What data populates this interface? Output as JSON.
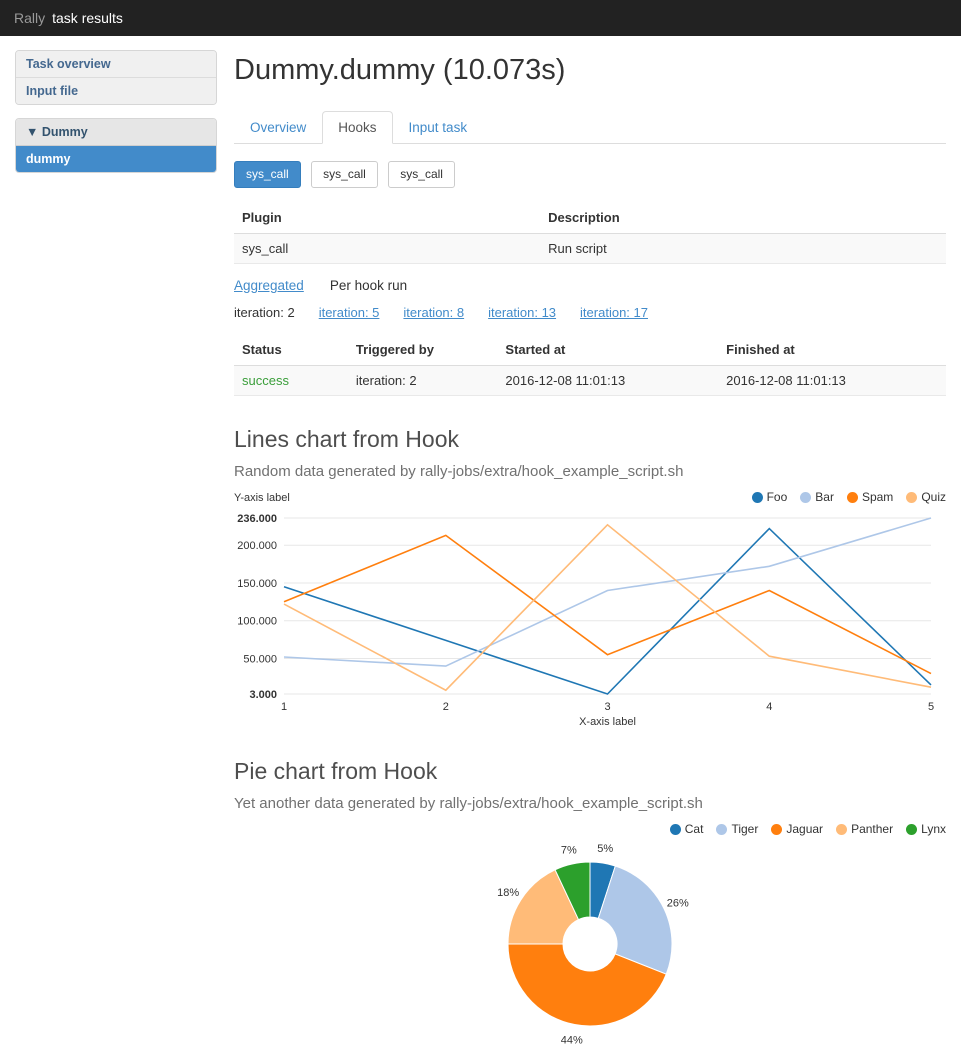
{
  "theme": {
    "accent": "#428bca",
    "navbar_bg": "#222222",
    "success_color": "#3a9e3a"
  },
  "navbar": {
    "brand": "Rally",
    "title": "task results"
  },
  "sidebar": {
    "top_items": [
      {
        "label": "Task overview"
      },
      {
        "label": "Input file"
      }
    ],
    "scenario_group": {
      "collapse_icon": "▼",
      "header": "Dummy",
      "items": [
        {
          "label": "dummy",
          "active": true
        }
      ]
    }
  },
  "main": {
    "title": "Dummy.dummy (10.073s)",
    "tabs": [
      {
        "label": "Overview",
        "active": false
      },
      {
        "label": "Hooks",
        "active": true
      },
      {
        "label": "Input task",
        "active": false
      }
    ],
    "hook_buttons": [
      {
        "label": "sys_call",
        "active": true
      },
      {
        "label": "sys_call",
        "active": false
      },
      {
        "label": "sys_call",
        "active": false
      }
    ],
    "plugin_table": {
      "headers": [
        "Plugin",
        "Description"
      ],
      "rows": [
        [
          "sys_call",
          "Run script"
        ]
      ]
    },
    "view_modes": {
      "aggregated_label": "Aggregated",
      "per_hook_label": "Per hook run"
    },
    "iterations": {
      "selected": "iteration: 2",
      "links": [
        "iteration: 5",
        "iteration: 8",
        "iteration: 13",
        "iteration: 17"
      ]
    },
    "runs_table": {
      "headers": [
        "Status",
        "Triggered by",
        "Started at",
        "Finished at"
      ],
      "rows": [
        [
          "success",
          "iteration: 2",
          "2016-12-08 11:01:13",
          "2016-12-08 11:01:13"
        ]
      ]
    },
    "lines_section": {
      "title": "Lines chart from Hook",
      "subtitle": "Random data generated by rally-jobs/extra/hook_example_script.sh"
    },
    "pie_section": {
      "title": "Pie chart from Hook",
      "subtitle": "Yet another data generated by rally-jobs/extra/hook_example_script.sh"
    }
  },
  "chart_data": [
    {
      "type": "line",
      "title": "Lines chart from Hook",
      "xlabel": "X-axis label",
      "ylabel": "Y-axis label",
      "x": [
        1,
        2,
        3,
        4,
        5
      ],
      "xlim": [
        1,
        5
      ],
      "ylim": [
        3,
        236
      ],
      "grid": true,
      "legend_position": "top-right",
      "yticks": [
        {
          "value": 236,
          "label": "236.000",
          "bold": true
        },
        {
          "value": 200,
          "label": "200.000",
          "bold": false
        },
        {
          "value": 150,
          "label": "150.000",
          "bold": false
        },
        {
          "value": 100,
          "label": "100.000",
          "bold": false
        },
        {
          "value": 50,
          "label": "50.000",
          "bold": false
        },
        {
          "value": 3,
          "label": "3.000",
          "bold": true
        }
      ],
      "series": [
        {
          "name": "Foo",
          "color": "#1f77b4",
          "values": [
            145,
            74,
            3,
            222,
            15
          ]
        },
        {
          "name": "Bar",
          "color": "#aec7e8",
          "values": [
            52,
            40,
            140,
            172,
            236
          ]
        },
        {
          "name": "Spam",
          "color": "#ff7f0e",
          "values": [
            125,
            213,
            55,
            140,
            30
          ]
        },
        {
          "name": "Quiz",
          "color": "#ffbb78",
          "values": [
            122,
            8,
            227,
            53,
            12
          ]
        }
      ]
    },
    {
      "type": "pie",
      "title": "Pie chart from Hook",
      "donut": true,
      "legend_position": "top-right",
      "labels": [
        "Cat",
        "Tiger",
        "Jaguar",
        "Panther",
        "Lynx"
      ],
      "values": [
        5,
        26,
        44,
        18,
        7
      ],
      "value_labels": [
        "5%",
        "26%",
        "44%",
        "18%",
        "7%"
      ],
      "colors": [
        "#1f77b4",
        "#aec7e8",
        "#ff7f0e",
        "#ffbb78",
        "#2ca02c"
      ]
    }
  ]
}
